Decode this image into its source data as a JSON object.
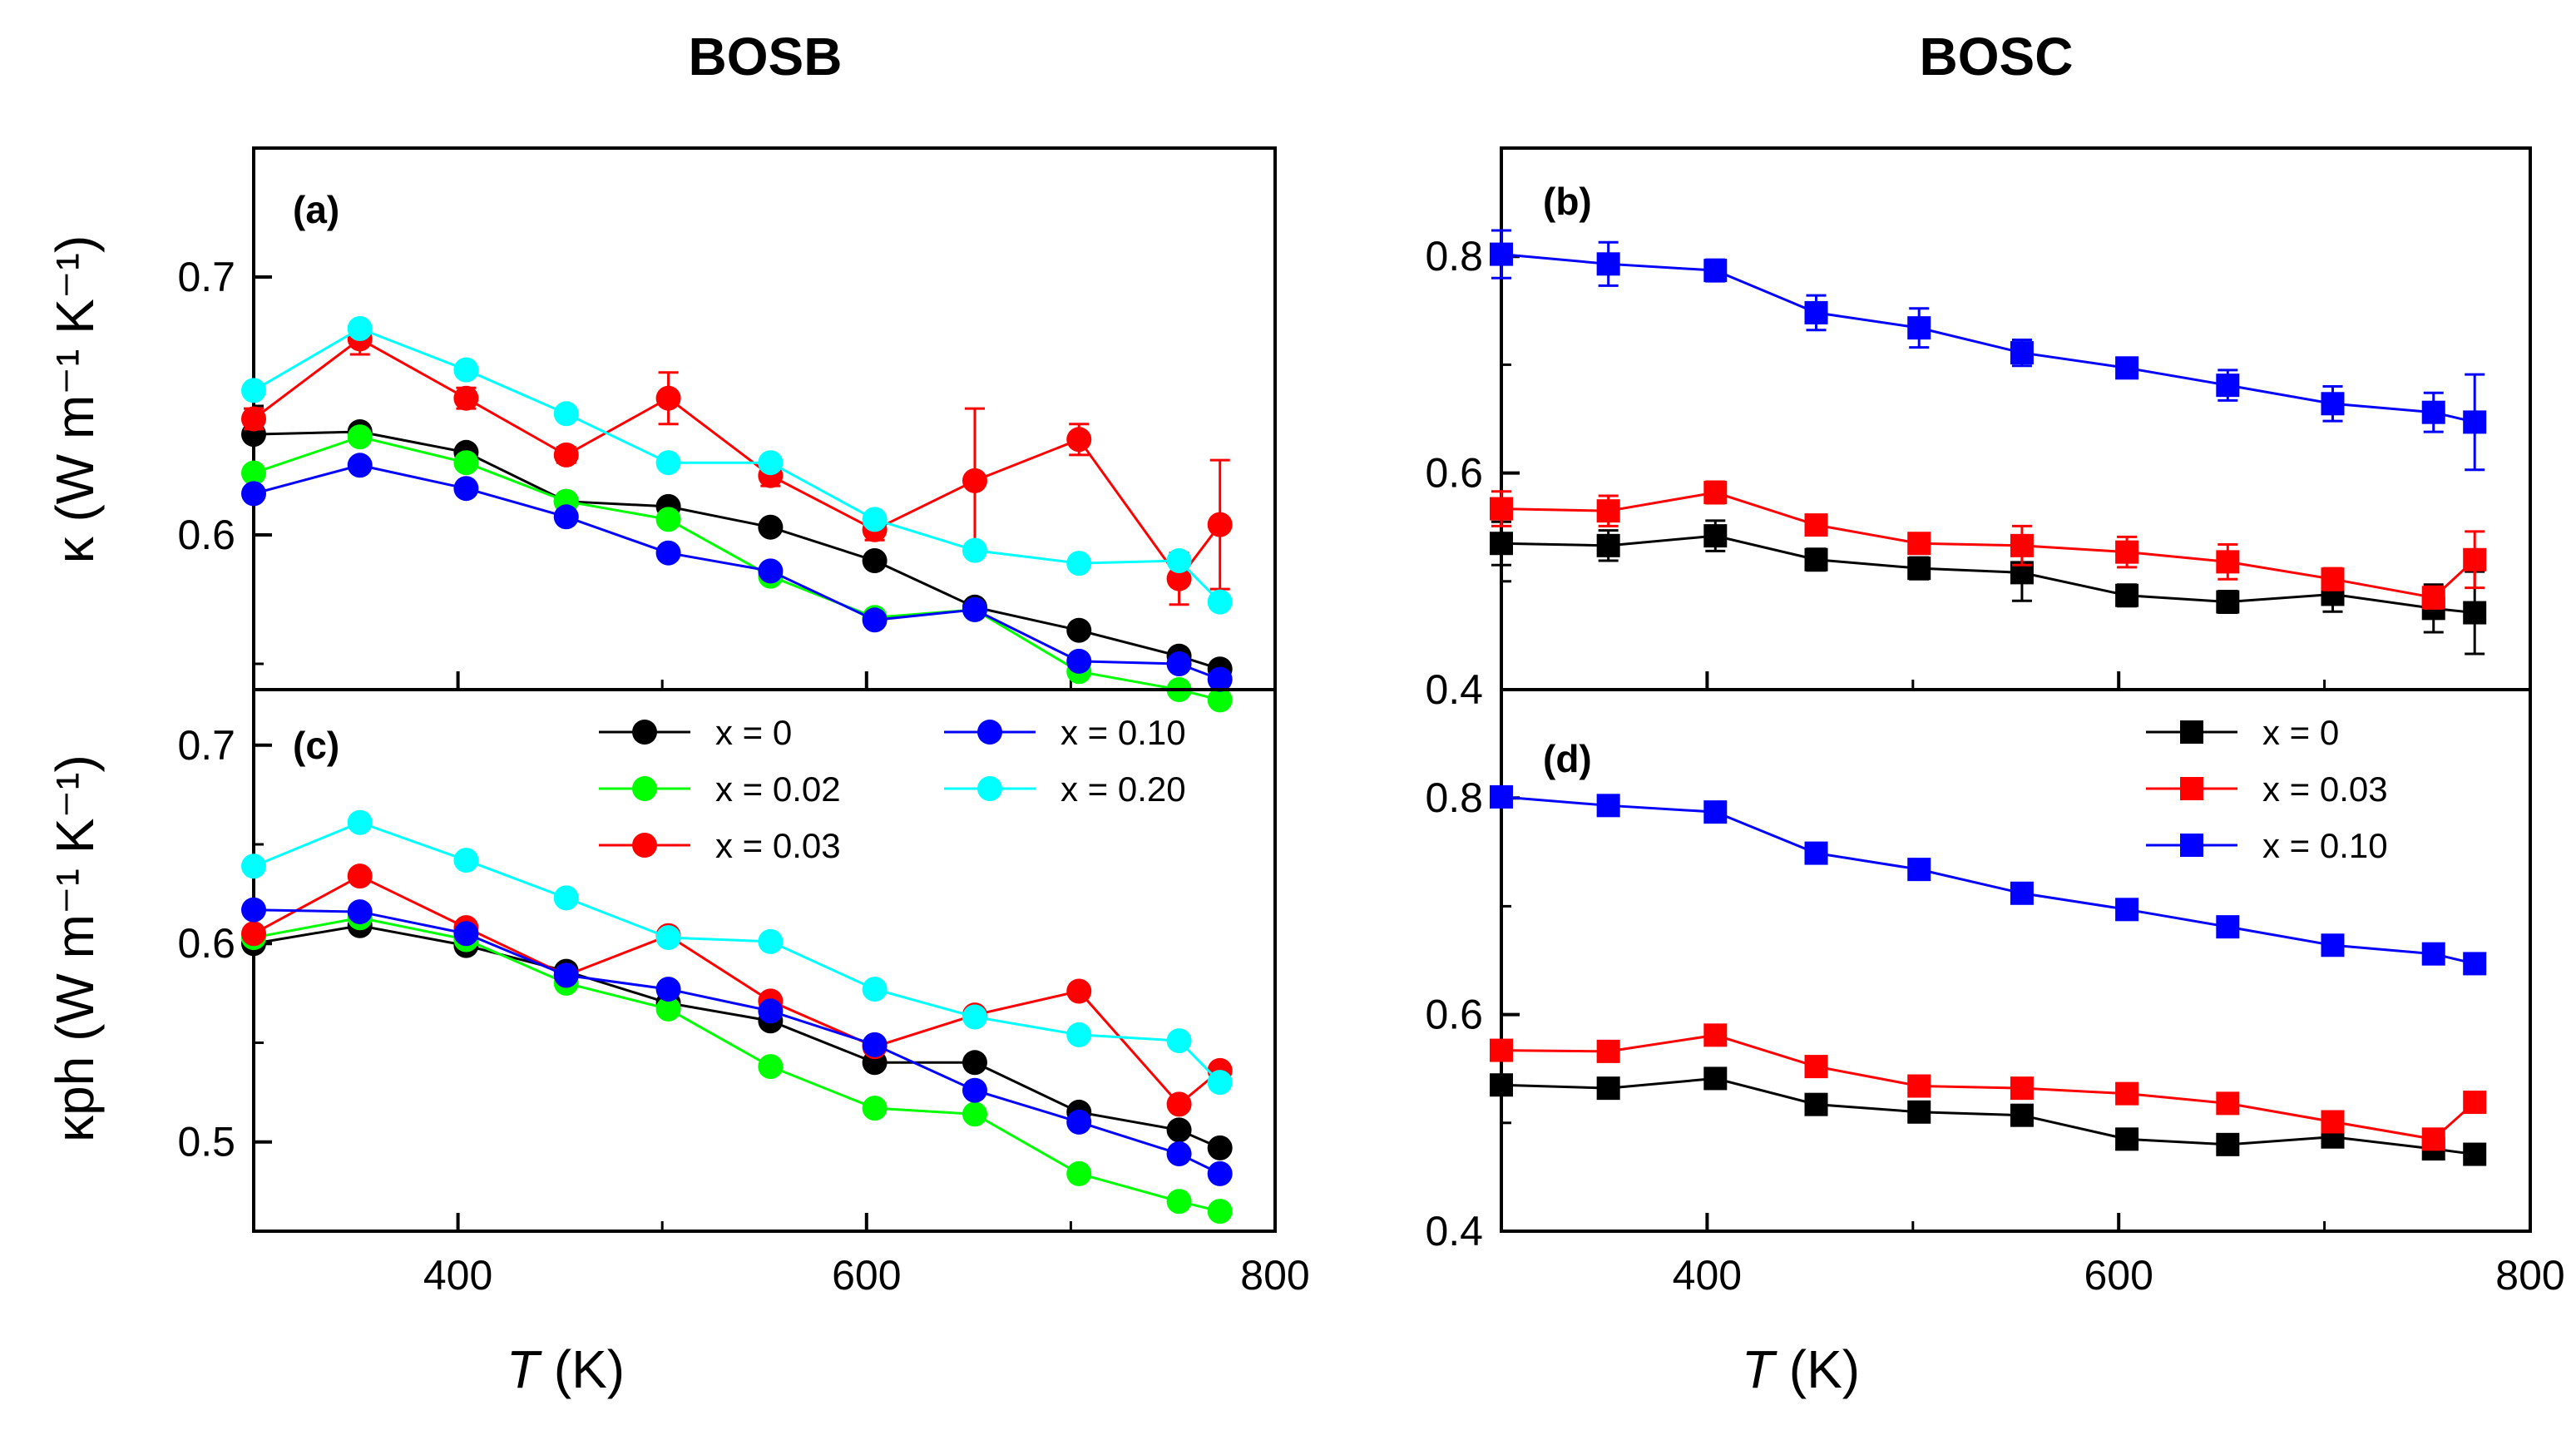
{
  "figure": {
    "col_titles": [
      "BOSB",
      "BOSC"
    ],
    "x_title_italic": "T",
    "x_title_rest": " (K)",
    "ylabel_top": "κ (W m⁻¹ K⁻¹)",
    "ylabel_bottom": "κph (W m⁻¹ K⁻¹)"
  },
  "chart_data": [
    {
      "id": "a",
      "type": "line",
      "panel_label": "(a)",
      "xlim": [
        300,
        800
      ],
      "ylim": [
        0.54,
        0.75
      ],
      "xticks": [
        400,
        600,
        800
      ],
      "yticks": [
        0.6,
        0.7
      ],
      "xlabel": "T (K)",
      "ylabel": "κ (W m⁻¹ K⁻¹)",
      "marker": "circle",
      "series": [
        {
          "name": "x = 0",
          "color": "#000000",
          "x": [
            300,
            352,
            404,
            453,
            503,
            553,
            604,
            653,
            704,
            753,
            773
          ],
          "y": [
            0.639,
            0.64,
            0.632,
            0.613,
            0.611,
            0.603,
            0.59,
            0.572,
            0.563,
            0.553,
            0.548
          ]
        },
        {
          "name": "x = 0.02",
          "color": "#00ff00",
          "x": [
            300,
            352,
            404,
            453,
            503,
            553,
            604,
            653,
            704,
            753,
            773
          ],
          "y": [
            0.624,
            0.638,
            0.628,
            0.613,
            0.606,
            0.584,
            0.568,
            0.571,
            0.547,
            0.54,
            0.536
          ]
        },
        {
          "name": "x = 0.03",
          "color": "#ff0000",
          "x": [
            300,
            352,
            404,
            453,
            503,
            553,
            604,
            653,
            704,
            753,
            773
          ],
          "y": [
            0.645,
            0.676,
            0.653,
            0.631,
            0.653,
            0.623,
            0.602,
            0.621,
            0.637,
            0.583,
            0.604
          ],
          "err": [
            0.004,
            0.006,
            0.004,
            0.003,
            0.01,
            0.004,
            0.004,
            0.028,
            0.006,
            0.01,
            0.025
          ]
        },
        {
          "name": "x = 0.10",
          "color": "#0000ff",
          "x": [
            300,
            352,
            404,
            453,
            503,
            553,
            604,
            653,
            704,
            753,
            773
          ],
          "y": [
            0.616,
            0.627,
            0.618,
            0.607,
            0.593,
            0.586,
            0.567,
            0.571,
            0.551,
            0.55,
            0.544
          ]
        },
        {
          "name": "x = 0.20",
          "color": "#00ffff",
          "x": [
            300,
            352,
            404,
            453,
            503,
            553,
            604,
            653,
            704,
            753,
            773
          ],
          "y": [
            0.656,
            0.68,
            0.664,
            0.647,
            0.628,
            0.628,
            0.606,
            0.594,
            0.589,
            0.59,
            0.574
          ]
        }
      ]
    },
    {
      "id": "b",
      "type": "line",
      "panel_label": "(b)",
      "xlim": [
        300,
        800
      ],
      "ylim": [
        0.4,
        0.9
      ],
      "xticks": [
        400,
        600,
        800
      ],
      "yticks": [
        0.4,
        0.6,
        0.8
      ],
      "xlabel": "T (K)",
      "ylabel": "κ (W m⁻¹ K⁻¹)",
      "marker": "square",
      "series": [
        {
          "name": "x = 0",
          "color": "#000000",
          "x": [
            300,
            352,
            404,
            453,
            503,
            553,
            604,
            653,
            704,
            753,
            773
          ],
          "y": [
            0.535,
            0.533,
            0.542,
            0.52,
            0.512,
            0.508,
            0.487,
            0.481,
            0.488,
            0.475,
            0.471
          ],
          "err": [
            0.02,
            0.014,
            0.014,
            0.01,
            0.01,
            0.026,
            0.01,
            0.01,
            0.016,
            0.022,
            0.038
          ]
        },
        {
          "name": "x = 0.03",
          "color": "#ff0000",
          "x": [
            300,
            352,
            404,
            453,
            503,
            553,
            604,
            653,
            704,
            753,
            773
          ],
          "y": [
            0.567,
            0.565,
            0.582,
            0.552,
            0.535,
            0.533,
            0.527,
            0.518,
            0.502,
            0.485,
            0.52
          ],
          "err": [
            0.016,
            0.014,
            0.01,
            0.008,
            0.008,
            0.018,
            0.014,
            0.016,
            0.01,
            0.01,
            0.026
          ]
        },
        {
          "name": "x = 0.10",
          "color": "#0000ff",
          "x": [
            300,
            352,
            404,
            453,
            503,
            553,
            604,
            653,
            704,
            753,
            773
          ],
          "y": [
            0.802,
            0.793,
            0.787,
            0.748,
            0.734,
            0.711,
            0.697,
            0.681,
            0.664,
            0.656,
            0.647
          ],
          "err": [
            0.022,
            0.02,
            0.01,
            0.016,
            0.018,
            0.012,
            0.008,
            0.014,
            0.016,
            0.018,
            0.044
          ]
        }
      ]
    },
    {
      "id": "c",
      "type": "line",
      "panel_label": "(c)",
      "xlim": [
        300,
        800
      ],
      "ylim": [
        0.455,
        0.728
      ],
      "xticks": [
        400,
        600,
        800
      ],
      "yticks": [
        0.5,
        0.6,
        0.7
      ],
      "xlabel": "T (K)",
      "ylabel": "κph (W m⁻¹ K⁻¹)",
      "marker": "circle",
      "series": [
        {
          "name": "x = 0",
          "color": "#000000",
          "x": [
            300,
            352,
            404,
            453,
            503,
            553,
            604,
            653,
            704,
            753,
            773
          ],
          "y": [
            0.6,
            0.609,
            0.599,
            0.586,
            0.57,
            0.561,
            0.54,
            0.54,
            0.515,
            0.506,
            0.497
          ]
        },
        {
          "name": "x = 0.02",
          "color": "#00ff00",
          "x": [
            300,
            352,
            404,
            453,
            503,
            553,
            604,
            653,
            704,
            753,
            773
          ],
          "y": [
            0.603,
            0.613,
            0.602,
            0.58,
            0.567,
            0.538,
            0.517,
            0.514,
            0.484,
            0.47,
            0.465
          ]
        },
        {
          "name": "x = 0.03",
          "color": "#ff0000",
          "x": [
            300,
            352,
            404,
            453,
            503,
            553,
            604,
            653,
            704,
            753,
            773
          ],
          "y": [
            0.605,
            0.634,
            0.608,
            0.584,
            0.604,
            0.571,
            0.548,
            0.564,
            0.576,
            0.519,
            0.536
          ]
        },
        {
          "name": "x = 0.10",
          "color": "#0000ff",
          "x": [
            300,
            352,
            404,
            453,
            503,
            553,
            604,
            653,
            704,
            753,
            773
          ],
          "y": [
            0.617,
            0.616,
            0.605,
            0.584,
            0.577,
            0.566,
            0.549,
            0.526,
            0.51,
            0.494,
            0.484
          ]
        },
        {
          "name": "x = 0.20",
          "color": "#00ffff",
          "x": [
            300,
            352,
            404,
            453,
            503,
            553,
            604,
            653,
            704,
            753,
            773
          ],
          "y": [
            0.639,
            0.661,
            0.642,
            0.623,
            0.603,
            0.601,
            0.577,
            0.563,
            0.554,
            0.551,
            0.53
          ]
        }
      ]
    },
    {
      "id": "d",
      "type": "line",
      "panel_label": "(d)",
      "xlim": [
        300,
        800
      ],
      "ylim": [
        0.4,
        0.9
      ],
      "xticks": [
        400,
        600,
        800
      ],
      "yticks": [
        0.4,
        0.6,
        0.8
      ],
      "xlabel": "T (K)",
      "ylabel": "κph (W m⁻¹ K⁻¹)",
      "marker": "square",
      "series": [
        {
          "name": "x = 0",
          "color": "#000000",
          "x": [
            300,
            352,
            404,
            453,
            503,
            553,
            604,
            653,
            704,
            753,
            773
          ],
          "y": [
            0.535,
            0.532,
            0.541,
            0.517,
            0.51,
            0.507,
            0.485,
            0.48,
            0.487,
            0.476,
            0.471
          ]
        },
        {
          "name": "x = 0.03",
          "color": "#ff0000",
          "x": [
            300,
            352,
            404,
            453,
            503,
            553,
            604,
            653,
            704,
            753,
            773
          ],
          "y": [
            0.567,
            0.566,
            0.581,
            0.552,
            0.534,
            0.532,
            0.527,
            0.518,
            0.501,
            0.485,
            0.519
          ]
        },
        {
          "name": "x = 0.10",
          "color": "#0000ff",
          "x": [
            300,
            352,
            404,
            453,
            503,
            553,
            604,
            653,
            704,
            753,
            773
          ],
          "y": [
            0.801,
            0.793,
            0.787,
            0.749,
            0.734,
            0.712,
            0.697,
            0.681,
            0.664,
            0.656,
            0.647
          ]
        }
      ]
    }
  ]
}
